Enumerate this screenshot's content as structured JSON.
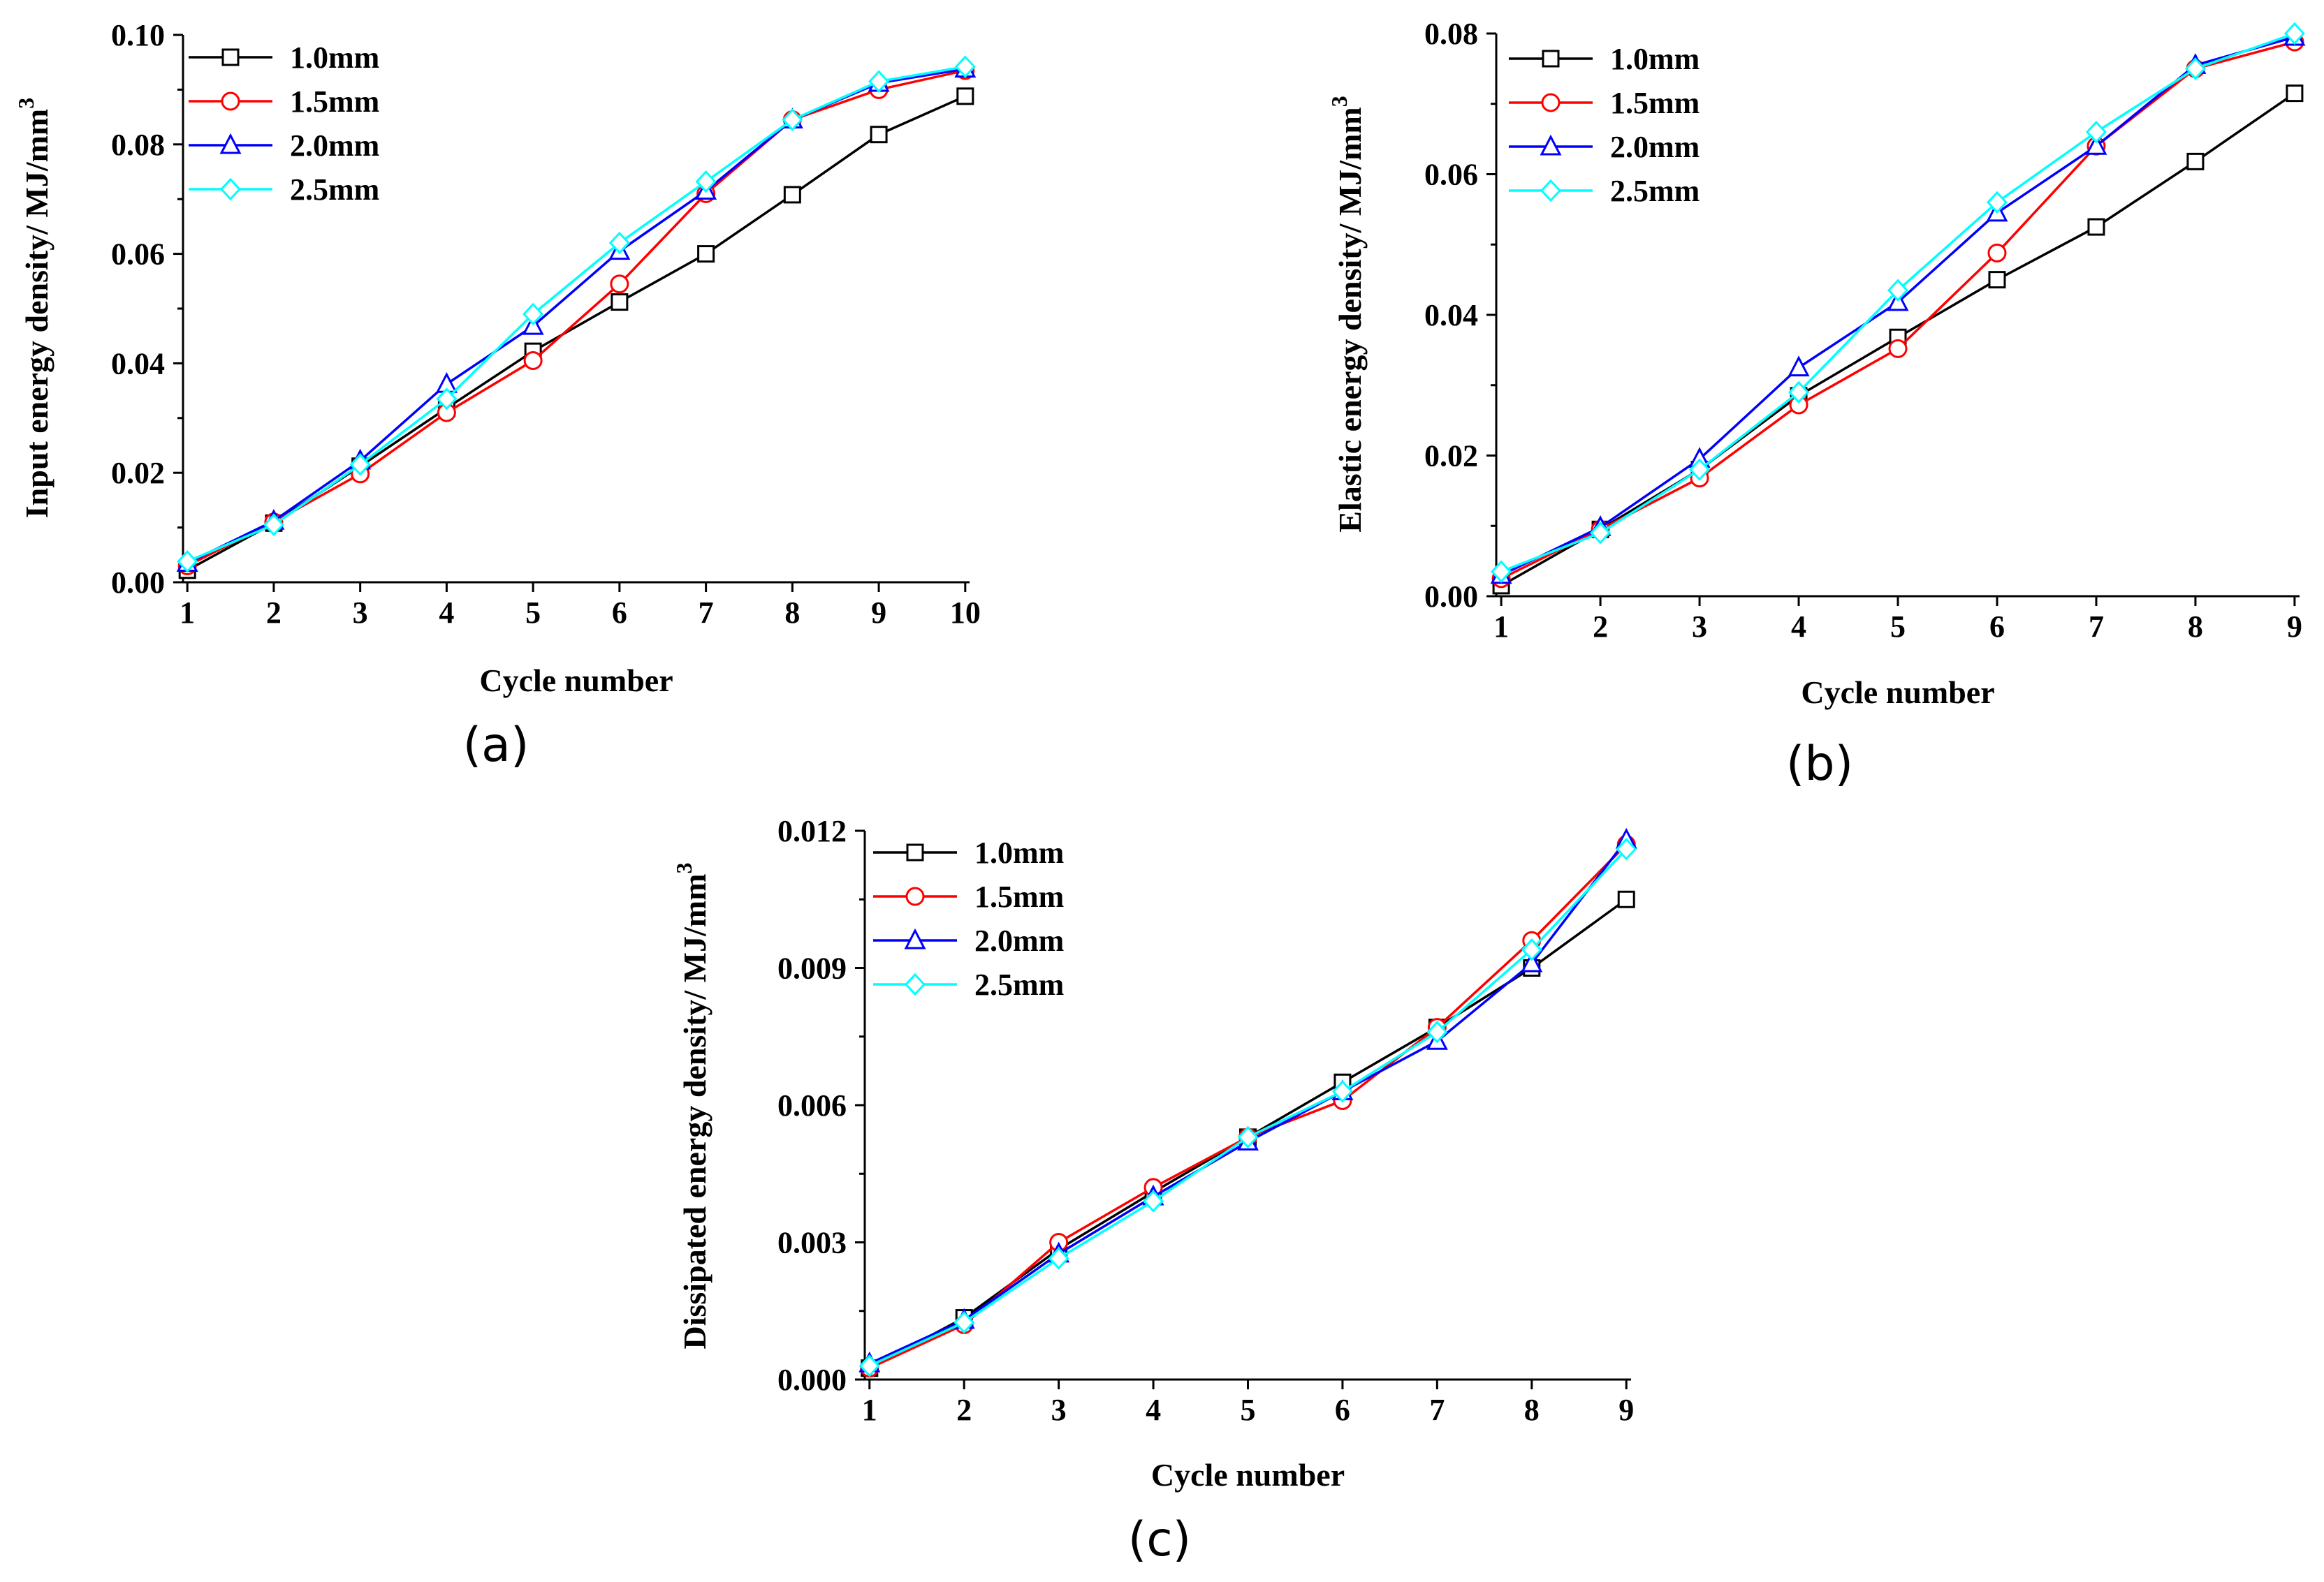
{
  "series_colors": {
    "1.0mm": "#000000",
    "1.5mm": "#ff0000",
    "2.0mm": "#0000ff",
    "2.5mm": "#00ffff"
  },
  "series_markers": {
    "1.0mm": "square",
    "1.5mm": "circle",
    "2.0mm": "triangle",
    "2.5mm": "diamond"
  },
  "chart_data": [
    {
      "id": "a",
      "type": "line",
      "panel_label": "(a)",
      "xlabel": "Cycle number",
      "ylabel": "Input energy density/ MJ/mm",
      "ylabel_sup": "3",
      "x": [
        1,
        2,
        3,
        4,
        5,
        6,
        7,
        8,
        9,
        10
      ],
      "xlim": [
        0.95,
        10.05
      ],
      "ylim": [
        0,
        0.1
      ],
      "yticks": [
        0.0,
        0.02,
        0.04,
        0.06,
        0.08,
        0.1
      ],
      "ytick_labels": [
        "0.00",
        "0.02",
        "0.04",
        "0.06",
        "0.08",
        "0.10"
      ],
      "xtick_labels": [
        "1",
        "2",
        "3",
        "4",
        "5",
        "6",
        "7",
        "8",
        "9",
        "10"
      ],
      "legend": "top-left",
      "series": [
        {
          "name": "1.0mm",
          "values": [
            0.0022,
            0.0108,
            0.0212,
            0.0318,
            0.0422,
            0.0512,
            0.06,
            0.0708,
            0.0818,
            0.0888
          ]
        },
        {
          "name": "1.5mm",
          "values": [
            0.003,
            0.011,
            0.0198,
            0.031,
            0.0405,
            0.0545,
            0.071,
            0.0845,
            0.09,
            0.0935
          ]
        },
        {
          "name": "2.0mm",
          "values": [
            0.0035,
            0.0112,
            0.0222,
            0.0362,
            0.0468,
            0.0605,
            0.0715,
            0.0845,
            0.0912,
            0.0938
          ]
        },
        {
          "name": "2.5mm",
          "values": [
            0.0038,
            0.0105,
            0.0215,
            0.0335,
            0.049,
            0.062,
            0.0732,
            0.0845,
            0.0915,
            0.0942
          ]
        }
      ]
    },
    {
      "id": "b",
      "type": "line",
      "panel_label": "(b)",
      "xlabel": "Cycle number",
      "ylabel": "Elastic energy density/ MJ/mm",
      "ylabel_sup": "3",
      "x": [
        1,
        2,
        3,
        4,
        5,
        6,
        7,
        8,
        9
      ],
      "xlim": [
        0.95,
        9.05
      ],
      "ylim": [
        0,
        0.08
      ],
      "yticks": [
        0.0,
        0.02,
        0.04,
        0.06,
        0.08
      ],
      "ytick_labels": [
        "0.00",
        "0.02",
        "0.04",
        "0.06",
        "0.08"
      ],
      "xtick_labels": [
        "1",
        "2",
        "3",
        "4",
        "5",
        "6",
        "7",
        "8",
        "9"
      ],
      "legend": "top-left",
      "series": [
        {
          "name": "1.0mm",
          "values": [
            0.0015,
            0.0095,
            0.018,
            0.0285,
            0.0368,
            0.045,
            0.0525,
            0.0618,
            0.0715
          ]
        },
        {
          "name": "1.5mm",
          "values": [
            0.0025,
            0.0095,
            0.0168,
            0.0272,
            0.0352,
            0.0488,
            0.064,
            0.075,
            0.0788
          ]
        },
        {
          "name": "2.0mm",
          "values": [
            0.003,
            0.0098,
            0.0195,
            0.0325,
            0.0418,
            0.0545,
            0.064,
            0.0755,
            0.0795
          ]
        },
        {
          "name": "2.5mm",
          "values": [
            0.0035,
            0.009,
            0.018,
            0.029,
            0.0435,
            0.056,
            0.066,
            0.075,
            0.08
          ]
        }
      ]
    },
    {
      "id": "c",
      "type": "line",
      "panel_label": "(c)",
      "xlabel": "Cycle number",
      "ylabel": "Dissipated energy density/ MJ/mm",
      "ylabel_sup": "3",
      "x": [
        1,
        2,
        3,
        4,
        5,
        6,
        7,
        8,
        9
      ],
      "xlim": [
        0.95,
        9.05
      ],
      "ylim": [
        0,
        0.012
      ],
      "yticks": [
        0.0,
        0.003,
        0.006,
        0.009,
        0.012
      ],
      "ytick_labels": [
        "0.000",
        "0.003",
        "0.006",
        "0.009",
        "0.012"
      ],
      "xtick_labels": [
        "1",
        "2",
        "3",
        "4",
        "5",
        "6",
        "7",
        "8",
        "9"
      ],
      "legend": "top-left",
      "series": [
        {
          "name": "1.0mm",
          "values": [
            0.00025,
            0.00135,
            0.00285,
            0.0041,
            0.0053,
            0.0065,
            0.0077,
            0.009,
            0.0105
          ]
        },
        {
          "name": "1.5mm",
          "values": [
            0.00025,
            0.0012,
            0.003,
            0.0042,
            0.0053,
            0.0061,
            0.0077,
            0.0096,
            0.0117
          ]
        },
        {
          "name": "2.0mm",
          "values": [
            0.00035,
            0.0013,
            0.00275,
            0.004,
            0.0052,
            0.0063,
            0.0074,
            0.0091,
            0.0118
          ]
        },
        {
          "name": "2.5mm",
          "values": [
            0.0003,
            0.00125,
            0.00265,
            0.0039,
            0.0053,
            0.0063,
            0.0076,
            0.0094,
            0.0116
          ]
        }
      ]
    }
  ]
}
